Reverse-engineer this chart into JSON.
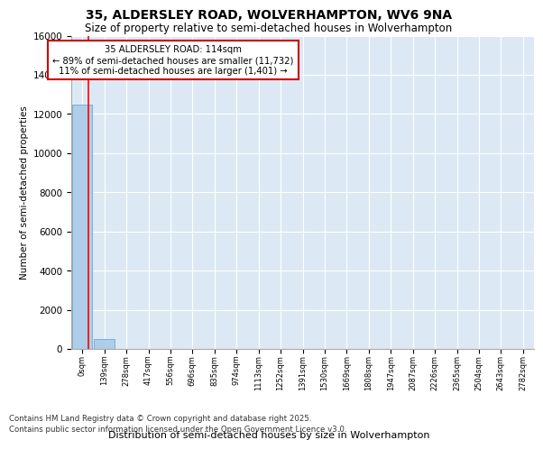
{
  "title_line1": "35, ALDERSLEY ROAD, WOLVERHAMPTON, WV6 9NA",
  "title_line2": "Size of property relative to semi-detached houses in Wolverhampton",
  "xlabel": "Distribution of semi-detached houses by size in Wolverhampton",
  "ylabel": "Number of semi-detached properties",
  "categories": [
    "0sqm",
    "139sqm",
    "278sqm",
    "417sqm",
    "556sqm",
    "696sqm",
    "835sqm",
    "974sqm",
    "1113sqm",
    "1252sqm",
    "1391sqm",
    "1530sqm",
    "1669sqm",
    "1808sqm",
    "1947sqm",
    "2087sqm",
    "2226sqm",
    "2365sqm",
    "2504sqm",
    "2643sqm",
    "2782sqm"
  ],
  "bar_heights": [
    12500,
    520,
    15,
    5,
    2,
    1,
    1,
    1,
    1,
    1,
    1,
    1,
    1,
    1,
    1,
    1,
    1,
    1,
    1,
    1,
    1
  ],
  "bar_color": "#aecde8",
  "bar_edge_color": "#7aafd4",
  "red_line_x": 0.82,
  "annotation_title": "35 ALDERSLEY ROAD: 114sqm",
  "annotation_line2": "← 89% of semi-detached houses are smaller (11,732)",
  "annotation_line3": "11% of semi-detached houses are larger (1,401) →",
  "annotation_box_facecolor": "#ffffff",
  "annotation_border_color": "#cc0000",
  "ylim": [
    0,
    16000
  ],
  "yticks": [
    0,
    2000,
    4000,
    6000,
    8000,
    10000,
    12000,
    14000,
    16000
  ],
  "background_color": "#dce9f5",
  "grid_color": "#ffffff",
  "footer_line1": "Contains HM Land Registry data © Crown copyright and database right 2025.",
  "footer_line2": "Contains public sector information licensed under the Open Government Licence v3.0."
}
